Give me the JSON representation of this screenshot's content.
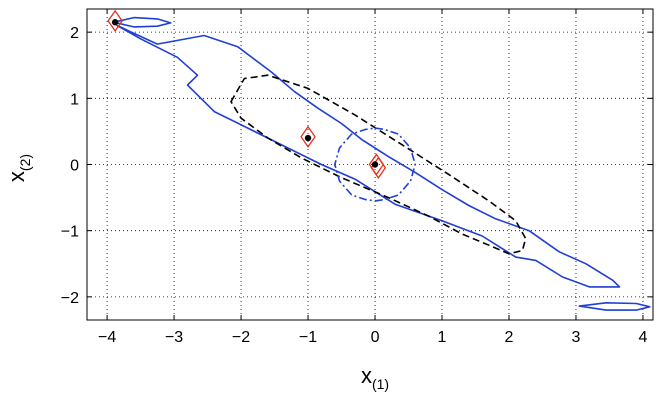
{
  "chart_data": {
    "type": "line",
    "xlabel": "x",
    "xlabel_sub": "(1)",
    "ylabel": "x",
    "ylabel_sub": "(2)",
    "xlim": [
      -4.3,
      4.15
    ],
    "ylim": [
      -2.35,
      2.35
    ],
    "grid": true,
    "x_ticks": [
      {
        "v": -4,
        "label": "−4"
      },
      {
        "v": -3,
        "label": "−3"
      },
      {
        "v": -2,
        "label": "−2"
      },
      {
        "v": -1,
        "label": "−1"
      },
      {
        "v": 0,
        "label": "0"
      },
      {
        "v": 1,
        "label": "1"
      },
      {
        "v": 2,
        "label": "2"
      },
      {
        "v": 3,
        "label": "3"
      },
      {
        "v": 4,
        "label": "4"
      }
    ],
    "y_ticks": [
      {
        "v": -2,
        "label": "−2"
      },
      {
        "v": -1,
        "label": "−1"
      },
      {
        "v": 0,
        "label": "0"
      },
      {
        "v": 1,
        "label": "1"
      },
      {
        "v": 2,
        "label": "2"
      }
    ],
    "series": [
      {
        "style": "solid",
        "color": "#1f3fd6",
        "x": [
          -3.85,
          -3.25,
          -2.55,
          -2.05,
          -1.55,
          -1.2,
          -0.85,
          -0.5,
          -0.2,
          0.2,
          0.6,
          1.0,
          1.4,
          1.8,
          2.3,
          2.75,
          3.15,
          3.55,
          3.65,
          3.2,
          2.8,
          2.4,
          2.1,
          1.6,
          1.0,
          0.3,
          -0.3,
          -0.8,
          -1.3,
          -1.9,
          -2.4,
          -2.8,
          -2.65,
          -2.95,
          -3.5,
          -3.85
        ],
        "y": [
          2.1,
          1.82,
          1.95,
          1.78,
          1.4,
          1.1,
          0.85,
          0.62,
          0.38,
          0.12,
          -0.12,
          -0.38,
          -0.62,
          -0.82,
          -1.0,
          -1.32,
          -1.5,
          -1.75,
          -1.85,
          -1.85,
          -1.7,
          -1.45,
          -1.4,
          -1.08,
          -0.85,
          -0.6,
          -0.22,
          0.0,
          0.25,
          0.55,
          0.8,
          1.2,
          1.35,
          1.62,
          1.9,
          2.1
        ]
      },
      {
        "style": "solid",
        "color": "#1f3fd6",
        "x": [
          -3.9,
          -3.6,
          -3.25,
          -3.05,
          -3.25,
          -3.6,
          -3.9
        ],
        "y": [
          2.15,
          2.22,
          2.2,
          2.14,
          2.09,
          2.08,
          2.15
        ]
      },
      {
        "style": "solid",
        "color": "#1f3fd6",
        "x": [
          3.05,
          3.45,
          3.9,
          4.1,
          3.9,
          3.45,
          3.05
        ],
        "y": [
          -2.14,
          -2.09,
          -2.1,
          -2.15,
          -2.2,
          -2.2,
          -2.14
        ]
      },
      {
        "style": "dashed",
        "color": "#000000",
        "x": [
          -2.15,
          -1.95,
          -1.6,
          -1.0,
          -0.3,
          0.4,
          1.1,
          1.7,
          2.1,
          2.25,
          2.2,
          2.0,
          1.7,
          1.3,
          0.8,
          0.2,
          -0.5,
          -1.1,
          -1.6,
          -2.0,
          -2.15
        ],
        "y": [
          0.95,
          1.3,
          1.35,
          1.15,
          0.75,
          0.3,
          -0.15,
          -0.55,
          -0.85,
          -1.12,
          -1.3,
          -1.35,
          -1.22,
          -1.05,
          -0.78,
          -0.5,
          -0.2,
          0.1,
          0.4,
          0.7,
          0.95
        ]
      },
      {
        "style": "dashdot",
        "color": "#1f3fd6",
        "x": [
          0.0,
          0.14,
          0.35,
          0.53,
          0.6,
          0.53,
          0.35,
          0.14,
          0.0,
          -0.14,
          -0.35,
          -0.53,
          -0.6,
          -0.53,
          -0.35,
          -0.14,
          0.0
        ],
        "y": [
          0.55,
          0.53,
          0.46,
          0.25,
          0.0,
          -0.25,
          -0.46,
          -0.53,
          -0.55,
          -0.53,
          -0.46,
          -0.25,
          0.0,
          0.25,
          0.46,
          0.53,
          0.55
        ]
      }
    ],
    "points": [
      {
        "x": -3.88,
        "y": 2.15
      },
      {
        "x": -1.0,
        "y": 0.4
      },
      {
        "x": 0.0,
        "y": 0.0
      }
    ],
    "diamonds": [
      {
        "x": -3.88,
        "y": 2.17
      },
      {
        "x": -1.0,
        "y": 0.42
      },
      {
        "x": 0.05,
        "y": -0.05
      },
      {
        "x": 0.02,
        "y": 0.0
      }
    ]
  }
}
